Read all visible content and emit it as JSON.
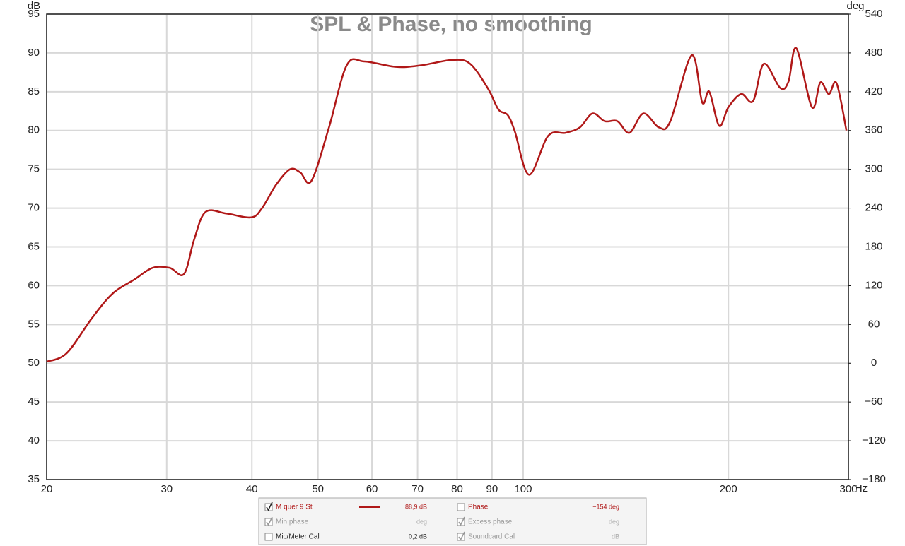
{
  "chart_data": {
    "type": "line",
    "title": "SPL & Phase, no smoothing",
    "y_label": "dB",
    "y2_label": "deg",
    "x_unit": "Hz",
    "xscale": "log",
    "grid": true,
    "xlim": [
      20,
      300
    ],
    "xticks": [
      20,
      30,
      40,
      50,
      60,
      70,
      80,
      90,
      100,
      200,
      300
    ],
    "ylim": [
      35,
      95
    ],
    "yticks": [
      35,
      40,
      45,
      50,
      55,
      60,
      65,
      70,
      75,
      80,
      85,
      90,
      95
    ],
    "y2lim": [
      -180,
      540
    ],
    "y2ticks": [
      {
        "value": -180,
        "label": "−180"
      },
      {
        "value": -120,
        "label": "−120"
      },
      {
        "value": -60,
        "label": "−60"
      },
      0,
      60,
      120,
      180,
      240,
      300,
      360,
      420,
      480,
      540
    ],
    "x": [
      20,
      21.4,
      23.3,
      25.0,
      26.9,
      28.6,
      30.3,
      31.8,
      32.9,
      34.2,
      36.7,
      39.9,
      41.4,
      43.4,
      45.5,
      47.1,
      48.9,
      51.9,
      55.1,
      58.5,
      65.1,
      70.8,
      78.8,
      83.6,
      88.8,
      92.0,
      94.9,
      97.2,
      102.0,
      108.8,
      115.4,
      121.1,
      126.4,
      131.7,
      137.5,
      143.2,
      150.1,
      158.2,
      164.4,
      176.7,
      183.1,
      187.5,
      193.9,
      200,
      208.8,
      217.4,
      225.5,
      238.2,
      245.0,
      251.6,
      265.2,
      272.9,
      280.8,
      288.2,
      298
    ],
    "series": [
      {
        "name": "M quer 9 St",
        "color": "#b01818",
        "values": [
          50.2,
          51.3,
          55.8,
          59.0,
          60.8,
          62.3,
          62.3,
          61.5,
          65.9,
          69.5,
          69.3,
          68.8,
          70.0,
          73.0,
          75.0,
          74.6,
          73.5,
          80.4,
          88.4,
          88.9,
          88.2,
          88.4,
          89.1,
          88.6,
          85.4,
          82.7,
          82.0,
          79.9,
          74.3,
          79.3,
          79.7,
          80.4,
          82.2,
          81.2,
          81.2,
          79.7,
          82.2,
          80.4,
          81.2,
          89.7,
          83.6,
          85.0,
          80.6,
          83.0,
          84.7,
          83.8,
          88.6,
          85.5,
          86.3,
          90.6,
          83.0,
          86.2,
          84.7,
          86.1,
          80.0
        ]
      }
    ]
  },
  "legend_panel": [
    {
      "label": "M quer 9 St",
      "value": "88,9 dB",
      "checked": true,
      "active": true,
      "swatch": true
    },
    {
      "label": "Phase",
      "value": "−154 deg",
      "checked": false,
      "active": true,
      "swatch": false
    },
    {
      "label": "Min phase",
      "value": "deg",
      "checked": true,
      "active": false,
      "swatch": false
    },
    {
      "label": "Excess phase",
      "value": "deg",
      "checked": true,
      "active": false,
      "swatch": false
    },
    {
      "label": "Mic/Meter Cal",
      "value": "0,2 dB",
      "checked": false,
      "active": false,
      "swatch": false
    },
    {
      "label": "Soundcard Cal",
      "value": "dB",
      "checked": true,
      "active": false,
      "swatch": false
    }
  ]
}
